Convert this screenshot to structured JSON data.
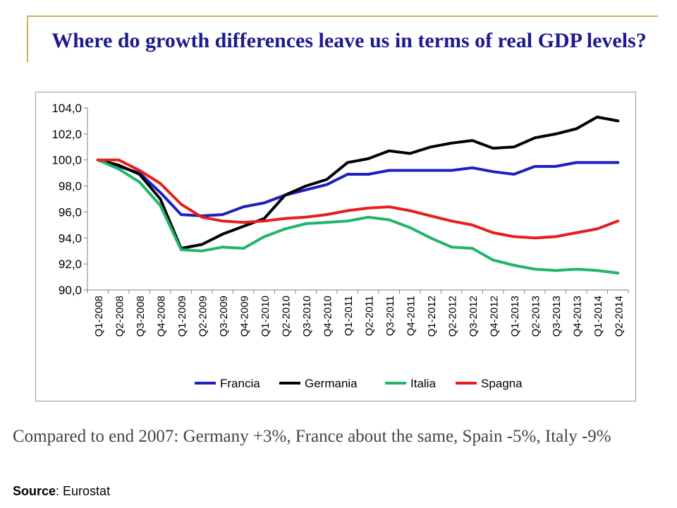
{
  "header": {
    "title": "Where do growth differences leave us in terms of real GDP levels?"
  },
  "footer": {
    "caption": "Compared to end 2007: Germany +3%, France about the same, Spain -5%, Italy -9%",
    "source_label": "Source",
    "source_value": ": Eurostat"
  },
  "chart_data": {
    "type": "line",
    "title": "",
    "xlabel": "",
    "ylabel": "",
    "ylim": [
      90,
      104
    ],
    "yticks": [
      "90,0",
      "92,0",
      "94,0",
      "96,0",
      "98,0",
      "100,0",
      "102,0",
      "104,0"
    ],
    "grid": false,
    "legend": "bottom",
    "categories": [
      "Q1-2008",
      "Q2-2008",
      "Q3-2008",
      "Q4-2008",
      "Q1-2009",
      "Q2-2009",
      "Q3-2009",
      "Q4-2009",
      "Q1-2010",
      "Q2-2010",
      "Q3-2010",
      "Q4-2010",
      "Q1-2011",
      "Q2-2011",
      "Q3-2011",
      "Q4-2011",
      "Q1-2012",
      "Q2-2012",
      "Q3-2012",
      "Q4-2012",
      "Q1-2013",
      "Q2-2013",
      "Q3-2013",
      "Q4-2013",
      "Q1-2014",
      "Q2-2014"
    ],
    "series": [
      {
        "name": "Francia",
        "color": "#1f1fbf",
        "values": [
          100.0,
          99.5,
          99.0,
          97.5,
          95.8,
          95.7,
          95.8,
          96.4,
          96.7,
          97.3,
          97.7,
          98.1,
          98.9,
          98.9,
          99.2,
          99.2,
          99.2,
          99.2,
          99.4,
          99.1,
          98.9,
          99.5,
          99.5,
          99.8,
          99.8,
          99.8
        ]
      },
      {
        "name": "Germania",
        "color": "#000000",
        "values": [
          100.0,
          99.6,
          98.9,
          97.0,
          93.2,
          93.5,
          94.3,
          94.9,
          95.5,
          97.3,
          98.0,
          98.5,
          99.8,
          100.1,
          100.7,
          100.5,
          101.0,
          101.3,
          101.5,
          100.9,
          101.0,
          101.7,
          102.0,
          102.4,
          103.3,
          103.0
        ]
      },
      {
        "name": "Italia",
        "color": "#1fb56b",
        "values": [
          100.0,
          99.3,
          98.3,
          96.5,
          93.1,
          93.0,
          93.3,
          93.2,
          94.1,
          94.7,
          95.1,
          95.2,
          95.3,
          95.6,
          95.4,
          94.8,
          94.0,
          93.3,
          93.2,
          92.3,
          91.9,
          91.6,
          91.5,
          91.6,
          91.5,
          91.3
        ]
      },
      {
        "name": "Spagna",
        "color": "#e61e1e",
        "values": [
          100.0,
          100.0,
          99.2,
          98.2,
          96.6,
          95.6,
          95.3,
          95.2,
          95.3,
          95.5,
          95.6,
          95.8,
          96.1,
          96.3,
          96.4,
          96.1,
          95.7,
          95.3,
          95.0,
          94.4,
          94.1,
          94.0,
          94.1,
          94.4,
          94.7,
          95.3
        ]
      }
    ]
  }
}
